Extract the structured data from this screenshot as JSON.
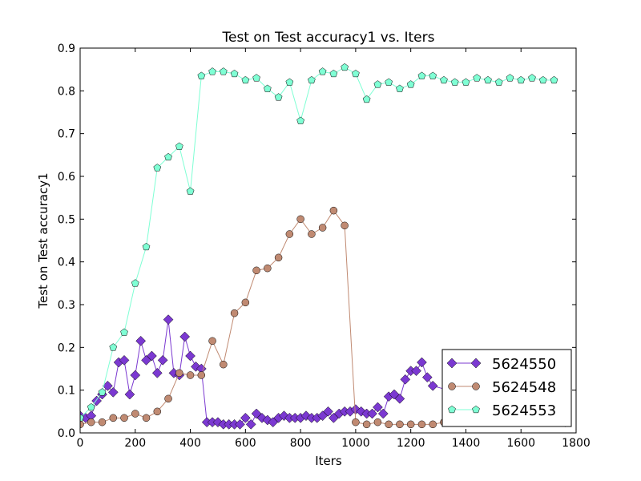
{
  "chart_data": {
    "type": "line",
    "title": "Test on Test accuracy1  vs. Iters",
    "xlabel": "Iters",
    "ylabel": "Test on Test accuracy1",
    "xlim": [
      0,
      1800
    ],
    "ylim": [
      0.0,
      0.9
    ],
    "xticks": [
      0,
      200,
      400,
      600,
      800,
      1000,
      1200,
      1400,
      1600,
      1800
    ],
    "yticks": [
      0.0,
      0.1,
      0.2,
      0.3,
      0.4,
      0.5,
      0.6,
      0.7,
      0.8,
      0.9
    ],
    "xtick_labels": [
      "0",
      "200",
      "400",
      "600",
      "800",
      "1000",
      "1200",
      "1400",
      "1600",
      "1800"
    ],
    "ytick_labels": [
      "0.0",
      "0.1",
      "0.2",
      "0.3",
      "0.4",
      "0.5",
      "0.6",
      "0.7",
      "0.8",
      "0.9"
    ],
    "grid": false,
    "legend_position": "bottom-right",
    "series": [
      {
        "name": "5624550",
        "color": "#7b39d1",
        "marker": "diamond",
        "points": [
          [
            0,
            0.04
          ],
          [
            20,
            0.035
          ],
          [
            40,
            0.04
          ],
          [
            60,
            0.075
          ],
          [
            80,
            0.09
          ],
          [
            100,
            0.11
          ],
          [
            120,
            0.095
          ],
          [
            140,
            0.165
          ],
          [
            160,
            0.17
          ],
          [
            180,
            0.09
          ],
          [
            200,
            0.135
          ],
          [
            220,
            0.215
          ],
          [
            240,
            0.17
          ],
          [
            260,
            0.18
          ],
          [
            280,
            0.14
          ],
          [
            300,
            0.17
          ],
          [
            320,
            0.265
          ],
          [
            340,
            0.14
          ],
          [
            360,
            0.135
          ],
          [
            380,
            0.225
          ],
          [
            400,
            0.18
          ],
          [
            420,
            0.155
          ],
          [
            440,
            0.15
          ],
          [
            460,
            0.025
          ],
          [
            480,
            0.025
          ],
          [
            500,
            0.025
          ],
          [
            520,
            0.02
          ],
          [
            540,
            0.02
          ],
          [
            560,
            0.02
          ],
          [
            580,
            0.02
          ],
          [
            600,
            0.035
          ],
          [
            620,
            0.02
          ],
          [
            640,
            0.045
          ],
          [
            660,
            0.035
          ],
          [
            680,
            0.03
          ],
          [
            700,
            0.025
          ],
          [
            720,
            0.035
          ],
          [
            740,
            0.04
          ],
          [
            760,
            0.035
          ],
          [
            780,
            0.035
          ],
          [
            800,
            0.035
          ],
          [
            820,
            0.04
          ],
          [
            840,
            0.035
          ],
          [
            860,
            0.035
          ],
          [
            880,
            0.04
          ],
          [
            900,
            0.05
          ],
          [
            920,
            0.035
          ],
          [
            940,
            0.045
          ],
          [
            960,
            0.05
          ],
          [
            980,
            0.05
          ],
          [
            1000,
            0.055
          ],
          [
            1020,
            0.05
          ],
          [
            1040,
            0.045
          ],
          [
            1060,
            0.045
          ],
          [
            1080,
            0.06
          ],
          [
            1100,
            0.045
          ],
          [
            1120,
            0.085
          ],
          [
            1140,
            0.09
          ],
          [
            1160,
            0.08
          ],
          [
            1180,
            0.125
          ],
          [
            1200,
            0.145
          ],
          [
            1220,
            0.145
          ],
          [
            1240,
            0.165
          ],
          [
            1260,
            0.13
          ],
          [
            1280,
            0.11
          ],
          [
            1760,
            0.025
          ]
        ]
      },
      {
        "name": "5624548",
        "color": "#c08a72",
        "marker": "circle",
        "points": [
          [
            0,
            0.02
          ],
          [
            40,
            0.025
          ],
          [
            80,
            0.025
          ],
          [
            120,
            0.035
          ],
          [
            160,
            0.035
          ],
          [
            200,
            0.045
          ],
          [
            240,
            0.035
          ],
          [
            280,
            0.05
          ],
          [
            320,
            0.08
          ],
          [
            360,
            0.14
          ],
          [
            400,
            0.135
          ],
          [
            440,
            0.135
          ],
          [
            480,
            0.215
          ],
          [
            520,
            0.16
          ],
          [
            560,
            0.28
          ],
          [
            600,
            0.305
          ],
          [
            640,
            0.38
          ],
          [
            680,
            0.385
          ],
          [
            720,
            0.41
          ],
          [
            760,
            0.465
          ],
          [
            800,
            0.5
          ],
          [
            840,
            0.465
          ],
          [
            880,
            0.48
          ],
          [
            920,
            0.52
          ],
          [
            960,
            0.485
          ],
          [
            1000,
            0.025
          ],
          [
            1040,
            0.02
          ],
          [
            1080,
            0.025
          ],
          [
            1120,
            0.02
          ],
          [
            1160,
            0.02
          ],
          [
            1200,
            0.02
          ],
          [
            1240,
            0.02
          ],
          [
            1280,
            0.02
          ],
          [
            1320,
            0.025
          ]
        ]
      },
      {
        "name": "5624553",
        "color": "#7fffd4",
        "marker": "pentagon",
        "points": [
          [
            0,
            0.035
          ],
          [
            40,
            0.06
          ],
          [
            80,
            0.095
          ],
          [
            120,
            0.2
          ],
          [
            160,
            0.235
          ],
          [
            200,
            0.35
          ],
          [
            240,
            0.435
          ],
          [
            280,
            0.62
          ],
          [
            320,
            0.645
          ],
          [
            360,
            0.67
          ],
          [
            400,
            0.565
          ],
          [
            440,
            0.835
          ],
          [
            480,
            0.845
          ],
          [
            520,
            0.845
          ],
          [
            560,
            0.84
          ],
          [
            600,
            0.825
          ],
          [
            640,
            0.83
          ],
          [
            680,
            0.805
          ],
          [
            720,
            0.785
          ],
          [
            760,
            0.82
          ],
          [
            800,
            0.73
          ],
          [
            840,
            0.825
          ],
          [
            880,
            0.845
          ],
          [
            920,
            0.84
          ],
          [
            960,
            0.855
          ],
          [
            1000,
            0.84
          ],
          [
            1040,
            0.78
          ],
          [
            1080,
            0.815
          ],
          [
            1120,
            0.82
          ],
          [
            1160,
            0.805
          ],
          [
            1200,
            0.815
          ],
          [
            1240,
            0.835
          ],
          [
            1280,
            0.835
          ],
          [
            1320,
            0.825
          ],
          [
            1360,
            0.82
          ],
          [
            1400,
            0.82
          ],
          [
            1440,
            0.83
          ],
          [
            1480,
            0.825
          ],
          [
            1520,
            0.82
          ],
          [
            1560,
            0.83
          ],
          [
            1600,
            0.825
          ],
          [
            1640,
            0.83
          ],
          [
            1680,
            0.825
          ],
          [
            1720,
            0.825
          ]
        ]
      }
    ]
  }
}
